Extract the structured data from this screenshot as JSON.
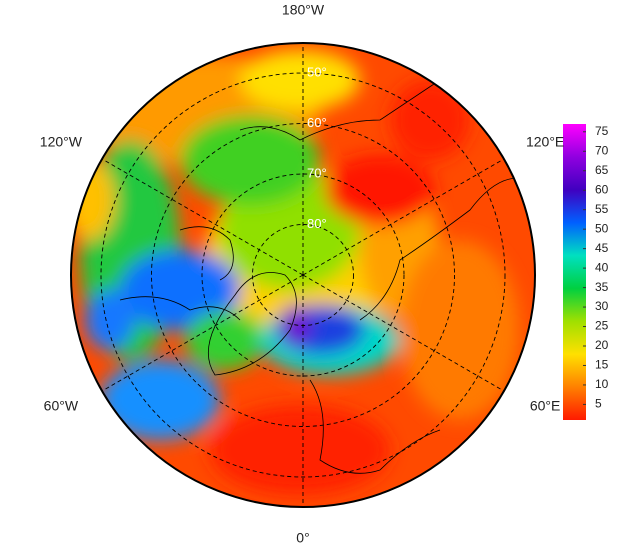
{
  "map": {
    "longitude_labels": [
      {
        "value": -180,
        "label": "180°W"
      },
      {
        "value": -120,
        "label": "120°W"
      },
      {
        "value": 120,
        "label": "120°E"
      },
      {
        "value": -60,
        "label": "60°W"
      },
      {
        "value": 60,
        "label": "60°E"
      },
      {
        "value": 0,
        "label": "0°"
      }
    ],
    "latitude_labels": [
      {
        "value": 50,
        "label": "50°"
      },
      {
        "value": 60,
        "label": "60°"
      },
      {
        "value": 70,
        "label": "70°"
      },
      {
        "value": 80,
        "label": "80°"
      }
    ]
  },
  "colorbar": {
    "range": [
      1,
      77
    ],
    "ticks": [
      5,
      10,
      15,
      20,
      25,
      30,
      35,
      40,
      45,
      50,
      55,
      60,
      65,
      70,
      75
    ],
    "colors": [
      "#ff1a00",
      "#ff8000",
      "#ffe000",
      "#a0e000",
      "#00d040",
      "#00e0c0",
      "#0060ff",
      "#4000c0",
      "#9000e0",
      "#ff00ff"
    ]
  }
}
